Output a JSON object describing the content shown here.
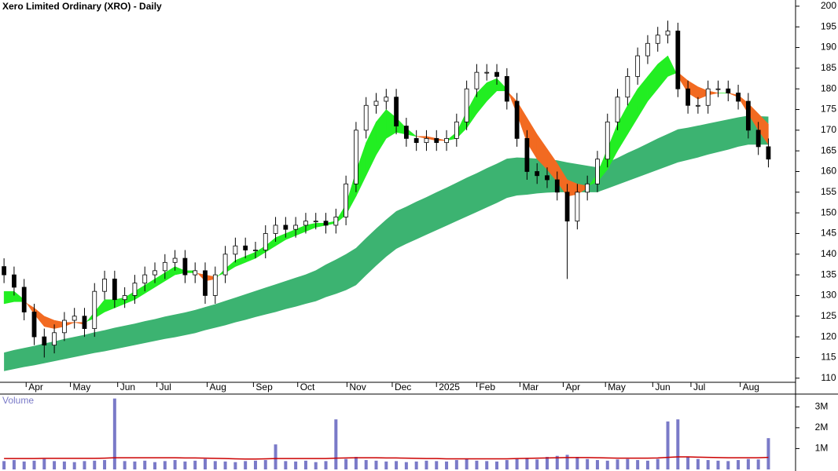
{
  "chart_data": {
    "type": "candlestick",
    "title": "Xero Limited Ordinary (XRO) - Daily",
    "x": [
      0,
      1,
      2,
      3,
      4,
      5,
      6,
      7,
      8,
      9,
      10,
      11,
      12,
      13,
      14,
      15,
      16,
      17,
      18,
      19,
      20,
      21,
      22,
      23,
      24,
      25,
      26,
      27,
      28,
      29,
      30,
      31,
      32,
      33,
      34,
      35,
      36,
      37,
      38,
      39,
      40,
      41,
      42,
      43,
      44,
      45,
      46,
      47,
      48,
      49,
      50,
      51,
      52,
      53,
      54,
      55,
      56,
      57,
      58,
      59,
      60,
      61,
      62,
      63,
      64,
      65,
      66,
      67,
      68,
      69,
      70,
      71,
      72,
      73,
      74,
      75,
      76
    ],
    "open": [
      137,
      135,
      132,
      126,
      120,
      118,
      121,
      124,
      125,
      122,
      131,
      134,
      129,
      130,
      133,
      135,
      136,
      138,
      139,
      135,
      136,
      130,
      135,
      140,
      142,
      141,
      141,
      145,
      147,
      146,
      147,
      148,
      148,
      147,
      149,
      157,
      170,
      176,
      177,
      178,
      171,
      168,
      167,
      168,
      167,
      168,
      172,
      180,
      184,
      184,
      183,
      177,
      168,
      160,
      159,
      158,
      155,
      148,
      155,
      157,
      163,
      172,
      178,
      183,
      188,
      191,
      193,
      194,
      180,
      176,
      176,
      180,
      180,
      179,
      177,
      170,
      166
    ],
    "high": [
      139,
      137,
      134,
      128,
      122,
      123,
      126,
      127,
      127,
      133,
      136,
      136,
      132,
      135,
      137,
      138,
      140,
      141,
      141,
      138,
      138,
      137,
      142,
      144,
      144,
      143,
      147,
      149,
      149,
      149,
      150,
      150,
      150,
      151,
      159,
      172,
      178,
      179,
      180,
      180,
      173,
      170,
      170,
      170,
      170,
      174,
      182,
      186,
      186,
      186,
      185,
      179,
      170,
      162,
      161,
      160,
      157,
      157,
      159,
      165,
      174,
      180,
      185,
      190,
      193,
      195,
      196.5,
      196,
      182,
      178,
      182,
      182,
      182,
      181,
      179,
      172,
      168
    ],
    "low": [
      133,
      130,
      124,
      118,
      115,
      116,
      119,
      122,
      120,
      120,
      129,
      127,
      127,
      128,
      131,
      133,
      134,
      136,
      133,
      133,
      128,
      128,
      133,
      138,
      139,
      139,
      139,
      143,
      144,
      144,
      145,
      146,
      145,
      145,
      147,
      155,
      168,
      174,
      175,
      169,
      166,
      165,
      165,
      165,
      165,
      166,
      170,
      178,
      182,
      181,
      175,
      166,
      158,
      157,
      156,
      153,
      134,
      146,
      153,
      155,
      161,
      170,
      176,
      181,
      186,
      189,
      191,
      178,
      174,
      174,
      174,
      178,
      177,
      175,
      168,
      164,
      161
    ],
    "close": [
      135,
      132,
      126,
      120,
      118,
      121,
      124,
      125,
      122,
      131,
      134,
      129,
      130,
      133,
      135,
      136,
      138,
      139,
      135,
      136,
      130,
      135,
      140,
      142,
      141,
      141,
      145,
      147,
      146,
      147,
      148,
      148,
      147,
      149,
      157,
      170,
      176,
      177,
      178,
      171,
      168,
      167,
      168,
      167,
      168,
      172,
      180,
      184,
      184,
      183,
      177,
      168,
      160,
      159,
      158,
      155,
      148,
      155,
      157,
      163,
      172,
      178,
      183,
      188,
      191,
      193,
      194,
      180,
      176,
      176,
      180,
      180,
      179,
      177,
      170,
      166,
      163
    ],
    "up_color": "#ffffff",
    "down_color": "#000000",
    "short_band": {
      "fast": [
        131,
        131,
        129,
        125.5,
        122.5,
        122,
        122.5,
        123.5,
        123,
        126,
        129,
        129,
        129.5,
        131,
        132.5,
        134,
        135.5,
        137,
        136,
        136,
        133.5,
        134,
        136.5,
        138.5,
        139.5,
        140.5,
        142,
        144,
        145,
        146,
        147,
        147.5,
        147.5,
        148,
        152,
        160,
        167,
        172,
        175,
        173,
        170.5,
        168.5,
        168,
        167.5,
        167.5,
        169.5,
        174.5,
        179,
        181.5,
        182.5,
        180,
        174,
        167,
        163,
        160.5,
        157.5,
        154,
        154.5,
        156,
        159.5,
        165.5,
        171.5,
        176,
        180,
        183,
        186,
        188,
        183,
        179,
        177.5,
        178.5,
        179,
        179,
        178,
        174,
        170,
        166.5
      ],
      "slow": [
        128,
        128.5,
        128.5,
        127,
        125,
        124,
        123.5,
        123.5,
        123.5,
        124.5,
        126,
        127,
        128,
        129,
        130.5,
        132,
        133.5,
        135,
        135.5,
        135.5,
        135,
        134.5,
        135.5,
        137,
        138,
        139,
        140.5,
        142,
        143.5,
        144.5,
        145.5,
        146.5,
        147,
        147.5,
        149.5,
        154,
        159,
        164,
        168,
        169.5,
        169,
        168.5,
        168.5,
        168,
        167.5,
        168,
        170.5,
        174,
        177,
        179.5,
        179.5,
        177,
        173,
        169,
        165.5,
        162,
        158,
        157,
        156.5,
        157.5,
        160.5,
        165,
        169,
        173,
        177,
        180,
        183,
        184,
        182,
        180.5,
        179.5,
        179,
        179,
        178.5,
        176.5,
        174,
        171.5
      ],
      "up_color": "#22ee22",
      "down_color": "#f26a21"
    },
    "long_band": {
      "upper": [
        116.2,
        116.8,
        117.3,
        117.8,
        118.4,
        118.9,
        119.5,
        120.0,
        120.5,
        121.1,
        121.6,
        122.2,
        122.7,
        123.2,
        123.8,
        124.3,
        124.9,
        125.4,
        125.9,
        126.5,
        127.2,
        127.9,
        128.7,
        129.5,
        130.3,
        131.1,
        131.9,
        132.7,
        133.5,
        134.3,
        135.1,
        136.1,
        137.5,
        138.7,
        140.0,
        141.5,
        143.9,
        146.2,
        148.4,
        150.4,
        151.5,
        152.7,
        153.8,
        155.0,
        156.1,
        157.3,
        158.5,
        159.6,
        160.8,
        161.9,
        163.1,
        163.4,
        163.3,
        163.1,
        163.0,
        162.7,
        162.2,
        161.8,
        161.4,
        161.0,
        162.2,
        163.3,
        164.5,
        165.6,
        166.8,
        168.0,
        169.1,
        170.2,
        170.6,
        171.1,
        171.6,
        172.1,
        172.6,
        173.1,
        173.5,
        173.4,
        173.3
      ],
      "lower": [
        111.7,
        112.2,
        112.7,
        113.1,
        113.6,
        114.1,
        114.6,
        115.1,
        115.6,
        116.1,
        116.5,
        117.0,
        117.5,
        118.0,
        118.5,
        119.0,
        119.5,
        119.9,
        120.4,
        120.9,
        121.6,
        122.2,
        122.8,
        123.5,
        124.1,
        124.8,
        125.4,
        126.0,
        126.7,
        127.3,
        128.0,
        128.6,
        129.6,
        130.4,
        131.3,
        132.5,
        134.9,
        137.2,
        139.4,
        141.3,
        142.5,
        143.6,
        144.7,
        145.8,
        146.9,
        148.0,
        149.1,
        150.2,
        151.3,
        152.4,
        153.6,
        154.2,
        154.4,
        154.7,
        154.9,
        155,
        155,
        155,
        155,
        155,
        155.9,
        156.8,
        157.7,
        158.6,
        159.5,
        160.4,
        161.3,
        162.2,
        162.8,
        163.4,
        164.1,
        164.7,
        165.3,
        166.0,
        166.5,
        166.5,
        166.5
      ],
      "color": "#3cb371"
    },
    "xlim": [
      -0.4,
      78.7
    ],
    "xticks": [
      {
        "value": 2.2,
        "label": "Apr"
      },
      {
        "value": 6.6,
        "label": "May"
      },
      {
        "value": 11.3,
        "label": "Jun"
      },
      {
        "value": 15.2,
        "label": "Jul"
      },
      {
        "value": 20.2,
        "label": "Aug"
      },
      {
        "value": 24.8,
        "label": "Sep"
      },
      {
        "value": 29.2,
        "label": "Oct"
      },
      {
        "value": 34.1,
        "label": "Nov"
      },
      {
        "value": 38.6,
        "label": "Dec"
      },
      {
        "value": 43.0,
        "label": "2025"
      },
      {
        "value": 47.0,
        "label": "Feb"
      },
      {
        "value": 51.3,
        "label": "Mar"
      },
      {
        "value": 55.6,
        "label": "Apr"
      },
      {
        "value": 59.8,
        "label": "May"
      },
      {
        "value": 64.5,
        "label": "Jun"
      },
      {
        "value": 68.3,
        "label": "Jul"
      },
      {
        "value": 73.2,
        "label": "Aug"
      }
    ],
    "ylim": [
      109,
      201.5
    ],
    "yticks": [
      110,
      115,
      120,
      125,
      130,
      135,
      140,
      145,
      150,
      155,
      160,
      165,
      170,
      175,
      180,
      185,
      190,
      195,
      200
    ],
    "volume": {
      "label": "Volume",
      "values": [
        400000,
        450000,
        380000,
        420000,
        500000,
        400000,
        380000,
        350000,
        400000,
        420000,
        450000,
        3400000,
        400000,
        380000,
        420000,
        350000,
        400000,
        450000,
        380000,
        420000,
        500000,
        400000,
        380000,
        350000,
        400000,
        420000,
        450000,
        1200000,
        400000,
        380000,
        420000,
        350000,
        400000,
        2400000,
        500000,
        600000,
        450000,
        420000,
        380000,
        400000,
        350000,
        380000,
        420000,
        400000,
        380000,
        450000,
        500000,
        420000,
        400000,
        380000,
        450000,
        500000,
        550000,
        480000,
        600000,
        650000,
        700000,
        600000,
        500000,
        450000,
        420000,
        480000,
        500000,
        450000,
        420000,
        500000,
        2300000,
        2400000,
        600000,
        500000,
        450000,
        420000,
        400000,
        450000,
        500000,
        480000,
        1500000
      ],
      "color": "#7a7ac8",
      "avg": [
        520000,
        520000,
        520000,
        520000,
        530000,
        530000,
        530000,
        530000,
        530000,
        530000,
        540000,
        560000,
        560000,
        560000,
        560000,
        560000,
        560000,
        560000,
        550000,
        550000,
        540000,
        530000,
        520000,
        510000,
        500000,
        500000,
        510000,
        520000,
        520000,
        520000,
        520000,
        520000,
        520000,
        540000,
        550000,
        560000,
        560000,
        560000,
        550000,
        550000,
        540000,
        530000,
        520000,
        520000,
        510000,
        510000,
        510000,
        510000,
        510000,
        510000,
        510000,
        520000,
        530000,
        540000,
        550000,
        560000,
        570000,
        570000,
        570000,
        560000,
        550000,
        540000,
        540000,
        540000,
        540000,
        550000,
        580000,
        600000,
        600000,
        590000,
        580000,
        570000,
        560000,
        560000,
        560000,
        560000,
        580000
      ],
      "avg_color": "#cc0000",
      "ylim": [
        0,
        3500000
      ],
      "yticks": [
        {
          "value": 1000000,
          "label": "1M"
        },
        {
          "value": 2000000,
          "label": "2M"
        },
        {
          "value": 3000000,
          "label": "3M"
        }
      ]
    }
  }
}
